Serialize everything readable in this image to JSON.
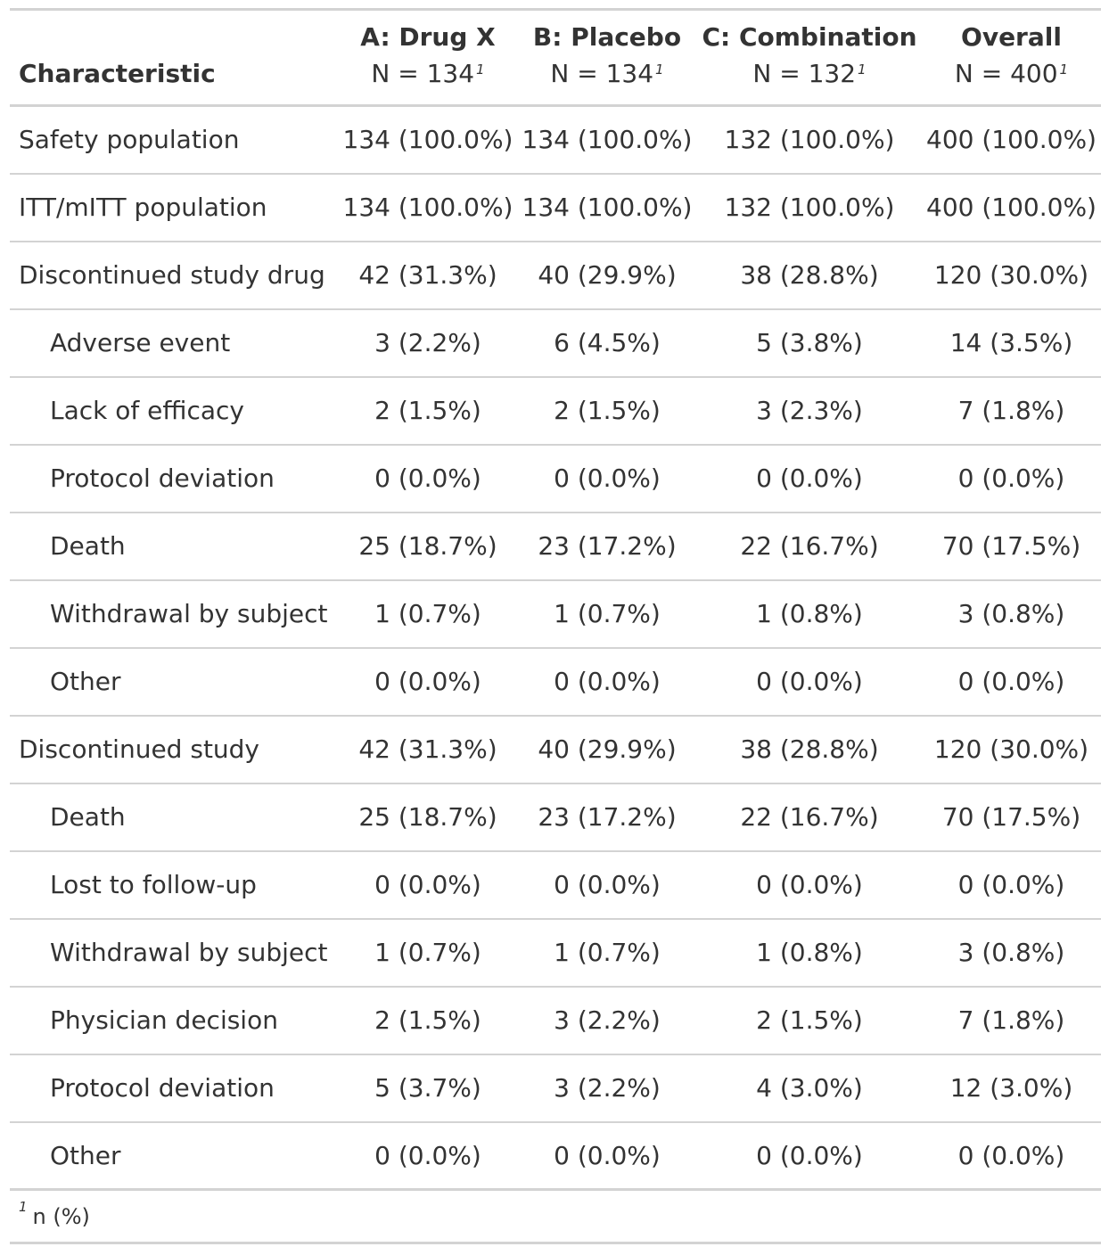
{
  "table": {
    "header": {
      "characteristic": "Characteristic",
      "arms": [
        {
          "name": "A: Drug X",
          "n": "N = 134",
          "footnote_mark": "1"
        },
        {
          "name": "B: Placebo",
          "n": "N = 134",
          "footnote_mark": "1"
        },
        {
          "name": "C: Combination",
          "n": "N = 132",
          "footnote_mark": "1"
        },
        {
          "name": "Overall",
          "n": "N = 400",
          "footnote_mark": "1"
        }
      ]
    },
    "rows": [
      {
        "label": "Safety population",
        "indent": false,
        "values": [
          "134 (100.0%)",
          "134 (100.0%)",
          "132 (100.0%)",
          "400 (100.0%)"
        ]
      },
      {
        "label": "ITT/mITT population",
        "indent": false,
        "values": [
          "134 (100.0%)",
          "134 (100.0%)",
          "132 (100.0%)",
          "400 (100.0%)"
        ]
      },
      {
        "label": "Discontinued study drug",
        "indent": false,
        "values": [
          "42 (31.3%)",
          "40 (29.9%)",
          "38 (28.8%)",
          "120 (30.0%)"
        ]
      },
      {
        "label": "Adverse event",
        "indent": true,
        "values": [
          "3 (2.2%)",
          "6 (4.5%)",
          "5 (3.8%)",
          "14 (3.5%)"
        ]
      },
      {
        "label": "Lack of efficacy",
        "indent": true,
        "values": [
          "2 (1.5%)",
          "2 (1.5%)",
          "3 (2.3%)",
          "7 (1.8%)"
        ]
      },
      {
        "label": "Protocol deviation",
        "indent": true,
        "values": [
          "0 (0.0%)",
          "0 (0.0%)",
          "0 (0.0%)",
          "0 (0.0%)"
        ]
      },
      {
        "label": "Death",
        "indent": true,
        "values": [
          "25 (18.7%)",
          "23 (17.2%)",
          "22 (16.7%)",
          "70 (17.5%)"
        ]
      },
      {
        "label": "Withdrawal by subject",
        "indent": true,
        "values": [
          "1 (0.7%)",
          "1 (0.7%)",
          "1 (0.8%)",
          "3 (0.8%)"
        ]
      },
      {
        "label": "Other",
        "indent": true,
        "values": [
          "0 (0.0%)",
          "0 (0.0%)",
          "0 (0.0%)",
          "0 (0.0%)"
        ]
      },
      {
        "label": "Discontinued study",
        "indent": false,
        "values": [
          "42 (31.3%)",
          "40 (29.9%)",
          "38 (28.8%)",
          "120 (30.0%)"
        ]
      },
      {
        "label": "Death",
        "indent": true,
        "values": [
          "25 (18.7%)",
          "23 (17.2%)",
          "22 (16.7%)",
          "70 (17.5%)"
        ]
      },
      {
        "label": "Lost to follow-up",
        "indent": true,
        "values": [
          "0 (0.0%)",
          "0 (0.0%)",
          "0 (0.0%)",
          "0 (0.0%)"
        ]
      },
      {
        "label": "Withdrawal by subject",
        "indent": true,
        "values": [
          "1 (0.7%)",
          "1 (0.7%)",
          "1 (0.8%)",
          "3 (0.8%)"
        ]
      },
      {
        "label": "Physician decision",
        "indent": true,
        "values": [
          "2 (1.5%)",
          "3 (2.2%)",
          "2 (1.5%)",
          "7 (1.8%)"
        ]
      },
      {
        "label": "Protocol deviation",
        "indent": true,
        "values": [
          "5 (3.7%)",
          "3 (2.2%)",
          "4 (3.0%)",
          "12 (3.0%)"
        ]
      },
      {
        "label": "Other",
        "indent": true,
        "values": [
          "0 (0.0%)",
          "0 (0.0%)",
          "0 (0.0%)",
          "0 (0.0%)"
        ]
      }
    ],
    "footnote": {
      "mark": "1",
      "text": "n (%)"
    }
  },
  "colors": {
    "text": "#333333",
    "rule": "#d3d3d3",
    "background": "#ffffff"
  }
}
